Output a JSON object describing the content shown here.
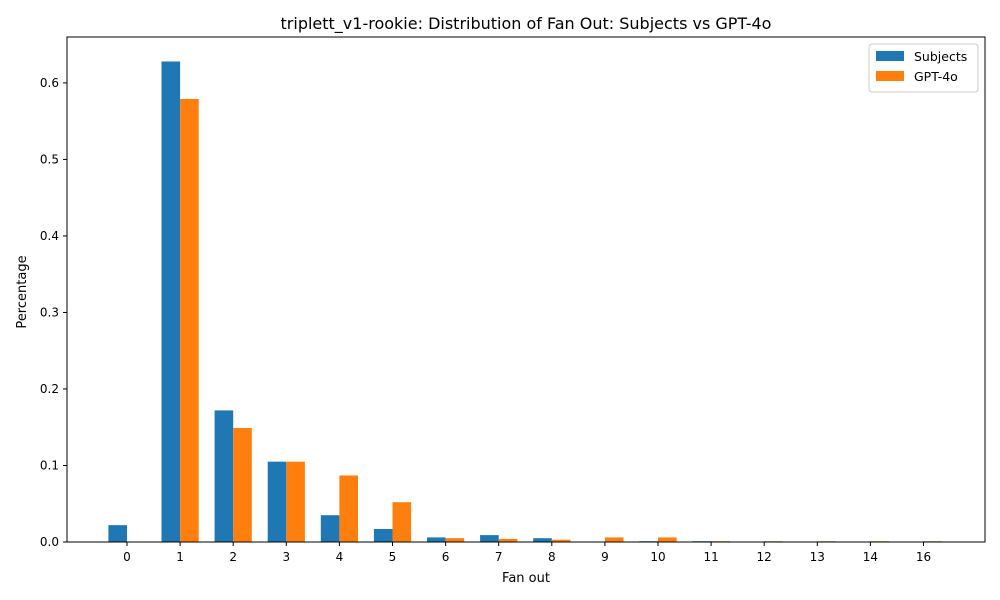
{
  "chart_data": {
    "type": "bar",
    "title": "triplett_v1-rookie: Distribution of Fan Out: Subjects vs GPT-4o",
    "xlabel": "Fan out",
    "ylabel": "Percentage",
    "categories": [
      "0",
      "1",
      "2",
      "3",
      "4",
      "5",
      "6",
      "7",
      "8",
      "9",
      "10",
      "11",
      "12",
      "13",
      "14",
      "16"
    ],
    "series": [
      {
        "name": "Subjects",
        "color": "#1f77b4",
        "values": [
          0.022,
          0.628,
          0.172,
          0.105,
          0.035,
          0.017,
          0.006,
          0.009,
          0.005,
          0.0,
          0.001,
          0.001,
          0.0,
          0.0,
          0.0,
          0.0
        ]
      },
      {
        "name": "GPT-4o",
        "color": "#ff7f0e",
        "values": [
          0.0,
          0.579,
          0.149,
          0.105,
          0.087,
          0.052,
          0.005,
          0.004,
          0.003,
          0.006,
          0.006,
          0.001,
          0.001,
          0.001,
          0.001,
          0.001
        ]
      }
    ],
    "ylim": [
      0,
      0.66
    ],
    "yticks": [
      "0.0",
      "0.1",
      "0.2",
      "0.3",
      "0.4",
      "0.5",
      "0.6"
    ],
    "grid": false,
    "legend_position": "top-right"
  }
}
